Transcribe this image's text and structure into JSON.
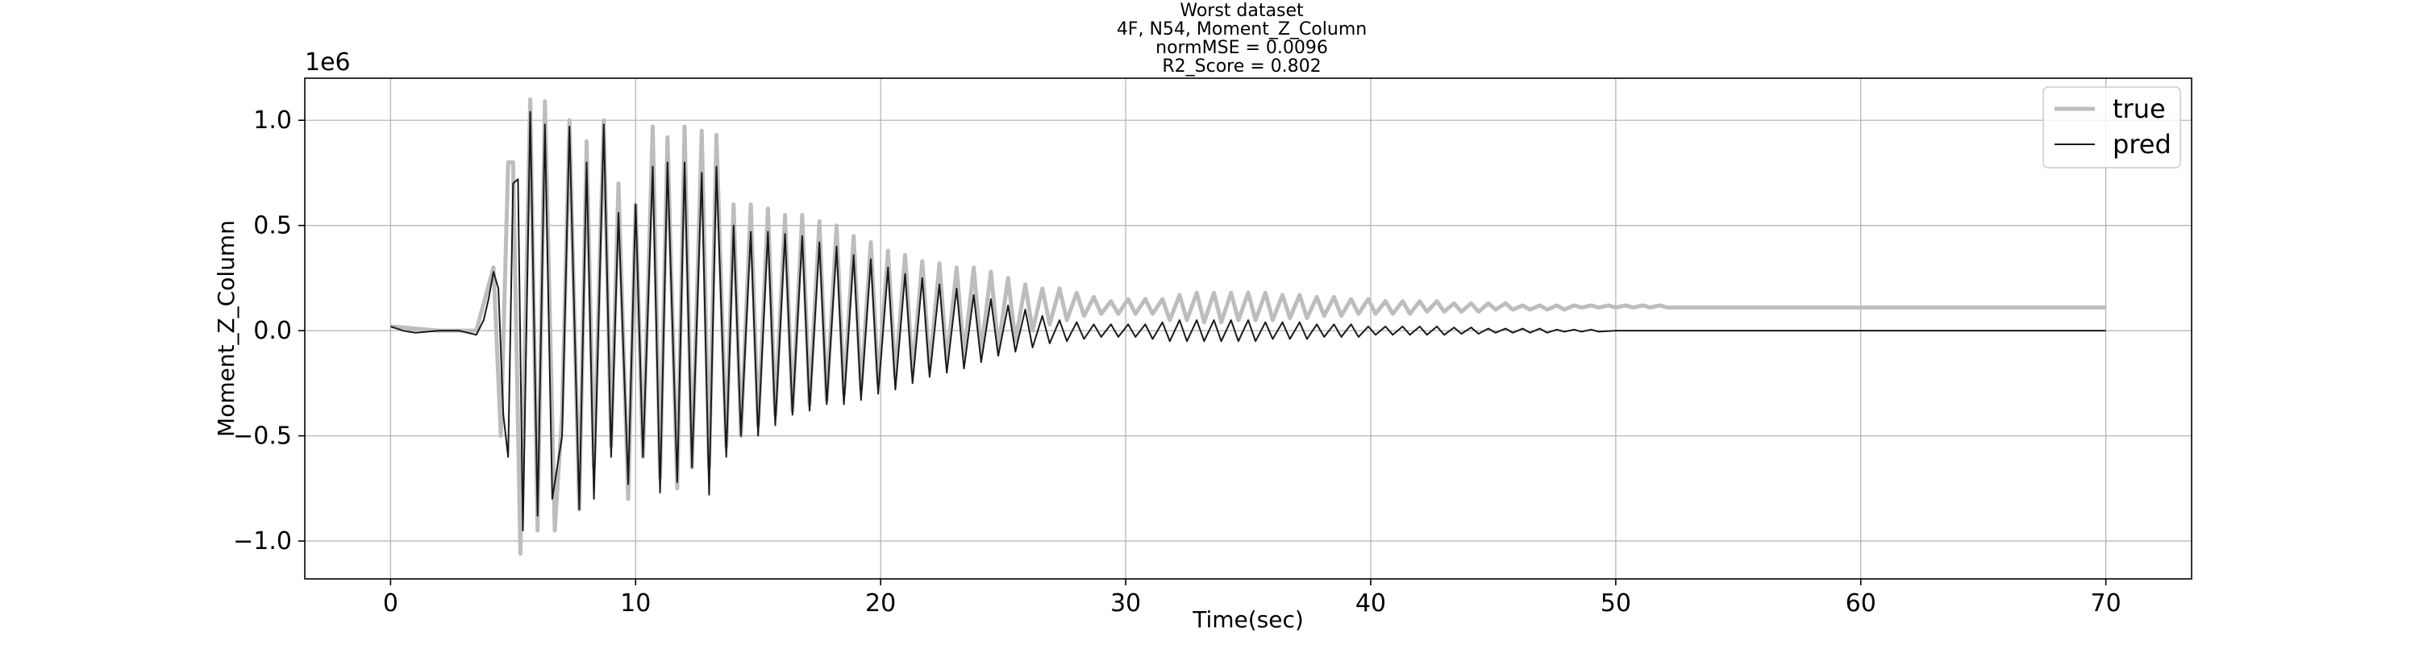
{
  "chart_data": {
    "type": "line",
    "title_lines": [
      "Worst dataset",
      "4F, N54, Moment_Z_Column",
      "normMSE = 0.0096",
      "R2_Score = 0.802"
    ],
    "xlabel": "Time(sec)",
    "ylabel": "Moment_Z_Column",
    "y_offset_text": "1e6",
    "xlim": [
      -3.5,
      73.5
    ],
    "ylim": [
      -1.18,
      1.2
    ],
    "x_ticks": [
      0,
      10,
      20,
      30,
      40,
      50,
      60,
      70
    ],
    "x_tick_labels": [
      "0",
      "10",
      "20",
      "30",
      "40",
      "50",
      "60",
      "70"
    ],
    "y_ticks": [
      -1.0,
      -0.5,
      0.0,
      0.5,
      1.0
    ],
    "y_tick_labels": [
      "−1.0",
      "−0.5",
      "0.0",
      "0.5",
      "1.0"
    ],
    "grid": true,
    "legend_position": "top-right",
    "series": [
      {
        "name": "true",
        "color": "#bdbdbd",
        "points": [
          [
            0.0,
            0.02
          ],
          [
            2.0,
            0.0
          ],
          [
            3.5,
            0.0
          ],
          [
            4.2,
            0.3
          ],
          [
            4.5,
            -0.5
          ],
          [
            4.8,
            0.8
          ],
          [
            5.0,
            0.8
          ],
          [
            5.3,
            -1.06
          ],
          [
            5.7,
            1.1
          ],
          [
            6.0,
            -0.95
          ],
          [
            6.3,
            1.09
          ],
          [
            6.7,
            -0.95
          ],
          [
            7.0,
            -0.4
          ],
          [
            7.3,
            1.0
          ],
          [
            7.7,
            -0.85
          ],
          [
            8.0,
            0.9
          ],
          [
            8.3,
            -0.65
          ],
          [
            8.7,
            1.0
          ],
          [
            9.0,
            -0.55
          ],
          [
            9.3,
            0.7
          ],
          [
            9.7,
            -0.8
          ],
          [
            10.0,
            0.6
          ],
          [
            10.3,
            -0.6
          ],
          [
            10.7,
            0.97
          ],
          [
            11.0,
            -0.7
          ],
          [
            11.3,
            0.92
          ],
          [
            11.7,
            -0.75
          ],
          [
            12.0,
            0.97
          ],
          [
            12.3,
            -0.65
          ],
          [
            12.7,
            0.95
          ],
          [
            13.0,
            -0.65
          ],
          [
            13.3,
            0.93
          ],
          [
            13.7,
            -0.55
          ],
          [
            14.0,
            0.6
          ],
          [
            14.3,
            -0.5
          ],
          [
            14.7,
            0.6
          ],
          [
            15.0,
            -0.45
          ],
          [
            15.4,
            0.58
          ],
          [
            15.7,
            -0.4
          ],
          [
            16.1,
            0.55
          ],
          [
            16.4,
            -0.38
          ],
          [
            16.8,
            0.55
          ],
          [
            17.1,
            -0.35
          ],
          [
            17.5,
            0.52
          ],
          [
            17.8,
            -0.33
          ],
          [
            18.2,
            0.5
          ],
          [
            18.5,
            -0.3
          ],
          [
            18.9,
            0.45
          ],
          [
            19.2,
            -0.28
          ],
          [
            19.6,
            0.42
          ],
          [
            19.9,
            -0.25
          ],
          [
            20.3,
            0.38
          ],
          [
            20.6,
            -0.22
          ],
          [
            21.0,
            0.36
          ],
          [
            21.3,
            -0.2
          ],
          [
            21.7,
            0.33
          ],
          [
            22.0,
            -0.18
          ],
          [
            22.4,
            0.32
          ],
          [
            22.7,
            -0.15
          ],
          [
            23.1,
            0.3
          ],
          [
            23.4,
            -0.12
          ],
          [
            23.8,
            0.3
          ],
          [
            24.1,
            -0.1
          ],
          [
            24.5,
            0.28
          ],
          [
            24.8,
            -0.08
          ],
          [
            25.2,
            0.25
          ],
          [
            25.5,
            -0.05
          ],
          [
            25.9,
            0.22
          ],
          [
            26.2,
            0.0
          ],
          [
            26.6,
            0.2
          ],
          [
            26.9,
            0.03
          ],
          [
            27.3,
            0.2
          ],
          [
            27.6,
            0.05
          ],
          [
            28.0,
            0.18
          ],
          [
            28.3,
            0.07
          ],
          [
            28.7,
            0.16
          ],
          [
            29.0,
            0.08
          ],
          [
            29.4,
            0.14
          ],
          [
            29.7,
            0.08
          ],
          [
            30.1,
            0.15
          ],
          [
            30.4,
            0.08
          ],
          [
            30.8,
            0.15
          ],
          [
            31.1,
            0.08
          ],
          [
            31.5,
            0.15
          ],
          [
            31.8,
            0.05
          ],
          [
            32.2,
            0.17
          ],
          [
            32.5,
            0.05
          ],
          [
            32.9,
            0.18
          ],
          [
            33.2,
            0.04
          ],
          [
            33.6,
            0.18
          ],
          [
            33.9,
            0.04
          ],
          [
            34.3,
            0.18
          ],
          [
            34.6,
            0.05
          ],
          [
            35.0,
            0.18
          ],
          [
            35.3,
            0.05
          ],
          [
            35.7,
            0.18
          ],
          [
            36.0,
            0.05
          ],
          [
            36.4,
            0.17
          ],
          [
            36.7,
            0.06
          ],
          [
            37.1,
            0.17
          ],
          [
            37.4,
            0.06
          ],
          [
            37.8,
            0.16
          ],
          [
            38.1,
            0.07
          ],
          [
            38.5,
            0.16
          ],
          [
            38.8,
            0.07
          ],
          [
            39.2,
            0.15
          ],
          [
            39.5,
            0.08
          ],
          [
            39.9,
            0.15
          ],
          [
            40.2,
            0.08
          ],
          [
            40.6,
            0.14
          ],
          [
            40.9,
            0.08
          ],
          [
            41.3,
            0.14
          ],
          [
            41.6,
            0.08
          ],
          [
            42.0,
            0.14
          ],
          [
            42.3,
            0.09
          ],
          [
            42.7,
            0.14
          ],
          [
            43.0,
            0.09
          ],
          [
            43.4,
            0.13
          ],
          [
            43.7,
            0.09
          ],
          [
            44.1,
            0.13
          ],
          [
            44.4,
            0.09
          ],
          [
            44.8,
            0.13
          ],
          [
            45.1,
            0.1
          ],
          [
            45.5,
            0.13
          ],
          [
            45.8,
            0.1
          ],
          [
            46.2,
            0.12
          ],
          [
            46.5,
            0.1
          ],
          [
            46.9,
            0.12
          ],
          [
            47.2,
            0.1
          ],
          [
            47.6,
            0.12
          ],
          [
            47.9,
            0.1
          ],
          [
            48.3,
            0.12
          ],
          [
            48.6,
            0.11
          ],
          [
            49.0,
            0.12
          ],
          [
            49.3,
            0.11
          ],
          [
            49.7,
            0.12
          ],
          [
            50.0,
            0.11
          ],
          [
            50.4,
            0.12
          ],
          [
            50.7,
            0.11
          ],
          [
            51.1,
            0.12
          ],
          [
            51.4,
            0.11
          ],
          [
            51.8,
            0.12
          ],
          [
            52.1,
            0.11
          ],
          [
            52.5,
            0.11
          ],
          [
            53.0,
            0.11
          ],
          [
            60.0,
            0.11
          ],
          [
            70.0,
            0.11
          ]
        ]
      },
      {
        "name": "pred",
        "color": "#1a1a1a",
        "points": [
          [
            0.0,
            0.02
          ],
          [
            0.5,
            0.0
          ],
          [
            1.0,
            -0.01
          ],
          [
            2.0,
            0.0
          ],
          [
            2.8,
            0.0
          ],
          [
            3.5,
            -0.02
          ],
          [
            3.8,
            0.05
          ],
          [
            4.0,
            0.15
          ],
          [
            4.2,
            0.28
          ],
          [
            4.4,
            0.2
          ],
          [
            4.6,
            -0.4
          ],
          [
            4.8,
            -0.6
          ],
          [
            5.0,
            0.7
          ],
          [
            5.2,
            0.72
          ],
          [
            5.4,
            -0.95
          ],
          [
            5.7,
            1.04
          ],
          [
            6.0,
            -0.88
          ],
          [
            6.3,
            0.98
          ],
          [
            6.6,
            -0.8
          ],
          [
            7.0,
            -0.5
          ],
          [
            7.3,
            0.97
          ],
          [
            7.7,
            -0.85
          ],
          [
            8.0,
            0.8
          ],
          [
            8.3,
            -0.8
          ],
          [
            8.7,
            0.98
          ],
          [
            9.0,
            -0.6
          ],
          [
            9.3,
            0.56
          ],
          [
            9.7,
            -0.73
          ],
          [
            10.0,
            0.6
          ],
          [
            10.3,
            -0.6
          ],
          [
            10.7,
            0.78
          ],
          [
            11.0,
            -0.77
          ],
          [
            11.3,
            0.8
          ],
          [
            11.7,
            -0.72
          ],
          [
            12.0,
            0.8
          ],
          [
            12.3,
            -0.65
          ],
          [
            12.7,
            0.75
          ],
          [
            13.0,
            -0.78
          ],
          [
            13.3,
            0.78
          ],
          [
            13.7,
            -0.6
          ],
          [
            14.0,
            0.5
          ],
          [
            14.3,
            -0.5
          ],
          [
            14.7,
            0.47
          ],
          [
            15.0,
            -0.5
          ],
          [
            15.4,
            0.47
          ],
          [
            15.7,
            -0.45
          ],
          [
            16.1,
            0.46
          ],
          [
            16.4,
            -0.4
          ],
          [
            16.8,
            0.45
          ],
          [
            17.1,
            -0.38
          ],
          [
            17.5,
            0.42
          ],
          [
            17.8,
            -0.35
          ],
          [
            18.2,
            0.4
          ],
          [
            18.5,
            -0.35
          ],
          [
            18.9,
            0.36
          ],
          [
            19.2,
            -0.33
          ],
          [
            19.6,
            0.34
          ],
          [
            19.9,
            -0.3
          ],
          [
            20.3,
            0.3
          ],
          [
            20.6,
            -0.28
          ],
          [
            21.0,
            0.27
          ],
          [
            21.3,
            -0.25
          ],
          [
            21.7,
            0.25
          ],
          [
            22.0,
            -0.22
          ],
          [
            22.4,
            0.22
          ],
          [
            22.7,
            -0.2
          ],
          [
            23.1,
            0.2
          ],
          [
            23.4,
            -0.18
          ],
          [
            23.8,
            0.17
          ],
          [
            24.1,
            -0.15
          ],
          [
            24.5,
            0.15
          ],
          [
            24.8,
            -0.12
          ],
          [
            25.2,
            0.12
          ],
          [
            25.5,
            -0.1
          ],
          [
            25.9,
            0.1
          ],
          [
            26.2,
            -0.08
          ],
          [
            26.6,
            0.07
          ],
          [
            26.9,
            -0.06
          ],
          [
            27.3,
            0.05
          ],
          [
            27.6,
            -0.05
          ],
          [
            28.0,
            0.04
          ],
          [
            28.3,
            -0.04
          ],
          [
            28.7,
            0.03
          ],
          [
            29.0,
            -0.03
          ],
          [
            29.4,
            0.03
          ],
          [
            29.7,
            -0.03
          ],
          [
            30.1,
            0.03
          ],
          [
            30.4,
            -0.03
          ],
          [
            30.8,
            0.03
          ],
          [
            31.1,
            -0.04
          ],
          [
            31.5,
            0.04
          ],
          [
            31.8,
            -0.05
          ],
          [
            32.2,
            0.05
          ],
          [
            32.5,
            -0.05
          ],
          [
            32.9,
            0.05
          ],
          [
            33.2,
            -0.05
          ],
          [
            33.6,
            0.05
          ],
          [
            33.9,
            -0.05
          ],
          [
            34.3,
            0.05
          ],
          [
            34.6,
            -0.05
          ],
          [
            35.0,
            0.05
          ],
          [
            35.3,
            -0.05
          ],
          [
            35.7,
            0.04
          ],
          [
            36.0,
            -0.04
          ],
          [
            36.4,
            0.04
          ],
          [
            36.7,
            -0.04
          ],
          [
            37.1,
            0.04
          ],
          [
            37.4,
            -0.04
          ],
          [
            37.8,
            0.03
          ],
          [
            38.1,
            -0.03
          ],
          [
            38.5,
            0.03
          ],
          [
            38.8,
            -0.03
          ],
          [
            39.2,
            0.03
          ],
          [
            39.5,
            -0.03
          ],
          [
            39.9,
            0.02
          ],
          [
            40.2,
            -0.02
          ],
          [
            40.6,
            0.02
          ],
          [
            40.9,
            -0.02
          ],
          [
            41.3,
            0.02
          ],
          [
            41.6,
            -0.02
          ],
          [
            42.0,
            0.02
          ],
          [
            42.3,
            -0.02
          ],
          [
            42.7,
            0.02
          ],
          [
            43.0,
            -0.02
          ],
          [
            43.4,
            0.015
          ],
          [
            43.7,
            -0.015
          ],
          [
            44.1,
            0.015
          ],
          [
            44.4,
            -0.015
          ],
          [
            44.8,
            0.01
          ],
          [
            45.1,
            -0.01
          ],
          [
            45.5,
            0.01
          ],
          [
            45.8,
            -0.01
          ],
          [
            46.2,
            0.01
          ],
          [
            46.5,
            -0.01
          ],
          [
            46.9,
            0.01
          ],
          [
            47.2,
            -0.01
          ],
          [
            47.6,
            0.005
          ],
          [
            47.9,
            -0.005
          ],
          [
            48.3,
            0.005
          ],
          [
            48.6,
            -0.005
          ],
          [
            49.0,
            0.005
          ],
          [
            49.3,
            -0.005
          ],
          [
            50.0,
            0.0
          ],
          [
            60.0,
            0.0
          ],
          [
            70.0,
            0.0
          ]
        ]
      }
    ]
  }
}
